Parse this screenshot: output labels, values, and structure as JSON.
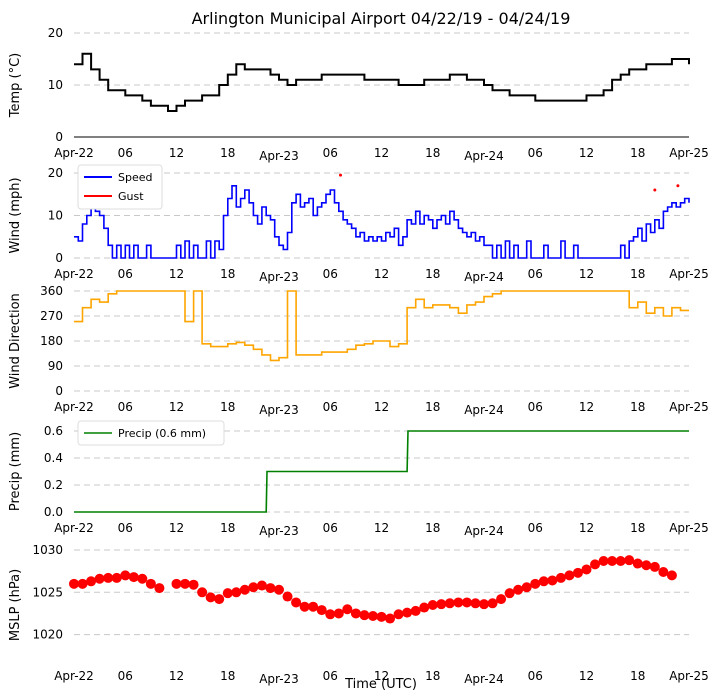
{
  "figure": {
    "title": "Arlington Municipal Airport 04/22/19 - 04/24/19",
    "xlabel": "Time (UTC)"
  },
  "time_axis": {
    "start": "2019-04-22T00:00Z",
    "end": "2019-04-25T00:00Z",
    "tick_labels": [
      "Apr-22",
      "06",
      "12",
      "18",
      "Apr-23",
      "06",
      "12",
      "18",
      "Apr-24",
      "06",
      "12",
      "18",
      "Apr-25"
    ]
  },
  "colors": {
    "temp": "#000000",
    "speed": "#0000ff",
    "gust": "#ff0000",
    "direction": "#ffa500",
    "precip": "#008000",
    "mslp": "#ff0000",
    "grid": "#c8c8c8"
  },
  "chart_data": [
    {
      "type": "line",
      "name": "temperature",
      "ylabel": "Temp ($^\\circ$C)",
      "ylabel_display": "Temp (°C)",
      "ylim": [
        0,
        20
      ],
      "yticks": [
        0,
        10,
        20
      ],
      "x_hours": [
        0,
        1,
        2,
        3,
        4,
        5,
        6,
        7,
        8,
        9,
        10,
        11,
        12,
        13,
        14,
        15,
        16,
        17,
        18,
        19,
        20,
        21,
        22,
        23,
        24,
        25,
        26,
        27,
        28,
        29,
        30,
        31,
        32,
        33,
        34,
        35,
        36,
        37,
        38,
        39,
        40,
        41,
        42,
        43,
        44,
        45,
        46,
        47,
        48,
        49,
        50,
        51,
        52,
        53,
        54,
        55,
        56,
        57,
        58,
        59,
        60,
        61,
        62,
        63,
        64,
        65,
        66,
        67,
        68,
        69,
        70,
        71,
        72
      ],
      "values": [
        14,
        16,
        13,
        11,
        9,
        9,
        8,
        8,
        7,
        6,
        6,
        5,
        6,
        7,
        7,
        8,
        8,
        10,
        12,
        14,
        13,
        13,
        13,
        12,
        11,
        10,
        11,
        11,
        11,
        12,
        12,
        12,
        12,
        12,
        11,
        11,
        11,
        11,
        10,
        10,
        10,
        11,
        11,
        11,
        12,
        12,
        11,
        11,
        10,
        9,
        9,
        8,
        8,
        8,
        7,
        7,
        7,
        7,
        7,
        7,
        8,
        8,
        9,
        11,
        12,
        13,
        13,
        14,
        14,
        14,
        15,
        15,
        14
      ],
      "grid": "horizontal dashed"
    },
    {
      "type": "line",
      "name": "wind",
      "ylabel": "Wind (mph)",
      "ylim": [
        0,
        20
      ],
      "yticks": [
        0,
        10,
        20
      ],
      "legend": {
        "position": "top-left",
        "entries": [
          "Speed",
          "Gust"
        ]
      },
      "series": [
        {
          "name": "Speed",
          "x_hours": [
            0,
            0.5,
            1,
            1.5,
            2,
            2.5,
            3,
            3.5,
            4,
            4.5,
            5,
            5.5,
            6,
            6.5,
            7,
            7.5,
            8,
            8.5,
            9,
            9.5,
            10,
            10.5,
            11,
            11.5,
            12,
            12.5,
            13,
            13.5,
            14,
            14.5,
            15,
            15.5,
            16,
            16.5,
            17,
            17.5,
            18,
            18.5,
            19,
            19.5,
            20,
            20.5,
            21,
            21.5,
            22,
            22.5,
            23,
            23.5,
            24,
            24.5,
            25,
            25.5,
            26,
            26.5,
            27,
            27.5,
            28,
            28.5,
            29,
            29.5,
            30,
            30.5,
            31,
            31.5,
            32,
            32.5,
            33,
            33.5,
            34,
            34.5,
            35,
            35.5,
            36,
            36.5,
            37,
            37.5,
            38,
            38.5,
            39,
            39.5,
            40,
            40.5,
            41,
            41.5,
            42,
            42.5,
            43,
            43.5,
            44,
            44.5,
            45,
            45.5,
            46,
            46.5,
            47,
            47.5,
            48,
            48.5,
            49,
            49.5,
            50,
            50.5,
            51,
            51.5,
            52,
            52.5,
            53,
            53.5,
            54,
            54.5,
            55,
            55.5,
            56,
            56.5,
            57,
            57.5,
            58,
            58.5,
            59,
            59.5,
            60,
            60.5,
            61,
            61.5,
            62,
            62.5,
            63,
            63.5,
            64,
            64.5,
            65,
            65.5,
            66,
            66.5,
            67,
            67.5,
            68,
            68.5,
            69,
            69.5,
            70,
            70.5,
            71,
            71.5,
            72
          ],
          "values": [
            5,
            4,
            8,
            10,
            14,
            11,
            10,
            7,
            3,
            0,
            3,
            0,
            3,
            0,
            3,
            0,
            0,
            3,
            0,
            0,
            0,
            0,
            0,
            0,
            3,
            0,
            4,
            0,
            3,
            0,
            0,
            4,
            0,
            4,
            2,
            10,
            14,
            17,
            12,
            14,
            16,
            13,
            10,
            8,
            12,
            10,
            9,
            5,
            3,
            2,
            6,
            13,
            15,
            12,
            13,
            14,
            10,
            12,
            13,
            15,
            16,
            13,
            11,
            9,
            8,
            7,
            5,
            6,
            4,
            5,
            4,
            5,
            4,
            6,
            5,
            7,
            3,
            5,
            9,
            8,
            11,
            8,
            10,
            9,
            7,
            9,
            10,
            8,
            11,
            9,
            7,
            6,
            5,
            6,
            4,
            5,
            3,
            3,
            0,
            3,
            0,
            4,
            0,
            3,
            0,
            0,
            4,
            0,
            0,
            0,
            3,
            0,
            0,
            0,
            4,
            0,
            0,
            3,
            0,
            0,
            0,
            0,
            0,
            0,
            0,
            0,
            0,
            0,
            3,
            0,
            4,
            5,
            7,
            4,
            8,
            6,
            9,
            7,
            11,
            12,
            13,
            12,
            13,
            14,
            13
          ],
          "color": "blue"
        },
        {
          "name": "Gust",
          "x_hours": [
            31.2,
            68.0,
            70.7
          ],
          "values": [
            19.5,
            16,
            17
          ],
          "color": "red",
          "style": "points"
        }
      ],
      "grid": "horizontal dashed"
    },
    {
      "type": "line",
      "name": "wind_direction",
      "ylabel": "Wind Direction",
      "ylim": [
        0,
        360
      ],
      "yticks": [
        0,
        90,
        180,
        270,
        360
      ],
      "x_hours": [
        0,
        1,
        2,
        3,
        4,
        5,
        6,
        7,
        8,
        9,
        10,
        11,
        12,
        13,
        14,
        15,
        16,
        17,
        18,
        19,
        20,
        21,
        22,
        23,
        24,
        25,
        26,
        27,
        28,
        29,
        30,
        31,
        32,
        33,
        34,
        35,
        36,
        37,
        38,
        39,
        40,
        41,
        42,
        43,
        44,
        45,
        46,
        47,
        48,
        49,
        50,
        51,
        52,
        53,
        54,
        55,
        56,
        57,
        58,
        59,
        60,
        61,
        62,
        63,
        64,
        65,
        66,
        67,
        68,
        69,
        70,
        71,
        72
      ],
      "values": [
        250,
        300,
        330,
        320,
        350,
        360,
        360,
        360,
        360,
        360,
        360,
        360,
        360,
        250,
        360,
        170,
        160,
        160,
        170,
        175,
        165,
        150,
        130,
        110,
        120,
        360,
        130,
        130,
        130,
        140,
        140,
        140,
        150,
        165,
        170,
        180,
        180,
        160,
        170,
        300,
        330,
        300,
        310,
        310,
        300,
        280,
        310,
        320,
        340,
        350,
        360,
        360,
        360,
        360,
        360,
        360,
        360,
        360,
        360,
        360,
        360,
        360,
        360,
        360,
        360,
        300,
        320,
        280,
        300,
        270,
        300,
        290,
        290
      ],
      "grid": "horizontal dashed"
    },
    {
      "type": "line",
      "name": "precip",
      "ylabel": "Precip (mm)",
      "ylim": [
        0,
        0.6
      ],
      "yticks": [
        0.0,
        0.2,
        0.4,
        0.6
      ],
      "ytick_labels": [
        "0.0",
        "0.2",
        "0.4",
        "0.6"
      ],
      "legend": {
        "position": "top-left",
        "entries": [
          "Precip (0.6 mm)"
        ]
      },
      "x_hours": [
        0,
        22.5,
        22.6,
        39.0,
        39.1,
        72
      ],
      "values": [
        0.0,
        0.0,
        0.3,
        0.3,
        0.6,
        0.6
      ],
      "grid": "horizontal dashed"
    },
    {
      "type": "scatter",
      "name": "mslp",
      "ylabel": "MSLP (hPa)",
      "ylim": [
        1017,
        1030
      ],
      "yticks": [
        1020,
        1025,
        1030
      ],
      "x_hours": [
        0,
        1,
        2,
        3,
        4,
        5,
        6,
        7,
        8,
        9,
        10,
        11,
        12,
        13,
        14,
        15,
        16,
        17,
        18,
        19,
        20,
        21,
        22,
        23,
        24,
        25,
        26,
        27,
        28,
        29,
        30,
        31,
        32,
        33,
        34,
        35,
        36,
        37,
        38,
        39,
        40,
        41,
        42,
        43,
        44,
        45,
        46,
        47,
        48,
        49,
        50,
        51,
        52,
        53,
        54,
        55,
        56,
        57,
        58,
        59,
        60,
        61,
        62,
        63,
        64,
        65,
        66,
        67,
        68,
        69,
        70,
        71,
        72
      ],
      "values": [
        1026.0,
        1026.0,
        1026.3,
        1026.6,
        1026.7,
        1026.7,
        1027.0,
        1026.8,
        1026.6,
        1026.0,
        1025.5,
        null,
        1026.0,
        1026.0,
        1025.9,
        1025.0,
        1024.4,
        1024.2,
        1024.9,
        1025.0,
        1025.3,
        1025.6,
        1025.8,
        1025.5,
        1025.3,
        1024.5,
        1023.8,
        1023.3,
        1023.3,
        1022.9,
        1022.4,
        1022.5,
        1023.0,
        1022.5,
        1022.3,
        1022.2,
        1022.1,
        1021.9,
        1022.4,
        1022.6,
        1022.8,
        1023.2,
        1023.5,
        1023.6,
        1023.7,
        1023.8,
        1023.8,
        1023.7,
        1023.6,
        1023.7,
        1024.2,
        1024.9,
        1025.3,
        1025.6,
        1026.0,
        1026.3,
        1026.4,
        1026.7,
        1027.0,
        1027.3,
        1027.7,
        1028.3,
        1028.7,
        1028.7,
        1028.7,
        1028.8,
        1028.4,
        1028.2,
        1028.0,
        1027.4,
        1027.0,
        null,
        null
      ],
      "grid": "horizontal dashed"
    }
  ]
}
